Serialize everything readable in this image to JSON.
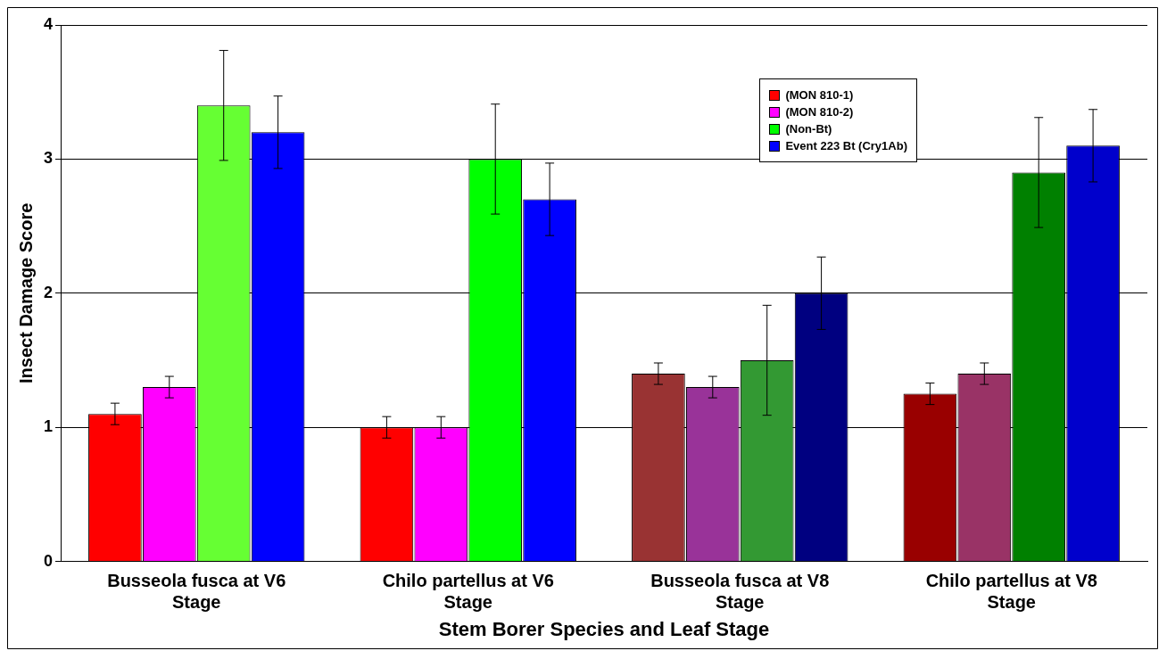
{
  "chart_data": {
    "type": "bar",
    "xlabel": "Stem Borer Species and Leaf Stage",
    "ylabel": "Insect Damage Score",
    "categories": [
      "Busseola fusca at V6 Stage",
      "Chilo partellus at V6 Stage",
      "Busseola fusca at V8 Stage",
      "Chilo partellus at V8 Stage"
    ],
    "series": [
      {
        "name": "(MON 810-1)",
        "color": "#ff0000",
        "colors": [
          "#ff0000",
          "#ff0000",
          "#993333",
          "#990000"
        ],
        "values": [
          1.1,
          1.0,
          1.4,
          1.25
        ],
        "errors": [
          0.08,
          0.08,
          0.08,
          0.08
        ]
      },
      {
        "name": "(MON 810-2)",
        "color": "#ff00ff",
        "colors": [
          "#ff00ff",
          "#ff00ff",
          "#993399",
          "#993366"
        ],
        "values": [
          1.3,
          1.0,
          1.3,
          1.4
        ],
        "errors": [
          0.08,
          0.08,
          0.08,
          0.08
        ]
      },
      {
        "name": "(Non-Bt)",
        "color": "#00ff00",
        "colors": [
          "#66ff33",
          "#00ff00",
          "#339933",
          "#008000"
        ],
        "values": [
          3.4,
          3.0,
          1.5,
          2.9
        ],
        "errors": [
          0.41,
          0.41,
          0.41,
          0.41
        ]
      },
      {
        "name": "Event 223 Bt (Cry1Ab)",
        "color": "#0000ff",
        "colors": [
          "#0000ff",
          "#0000ff",
          "#000080",
          "#0000cc"
        ],
        "values": [
          3.2,
          2.7,
          2.0,
          3.1
        ],
        "errors": [
          0.27,
          0.27,
          0.27,
          0.27
        ]
      }
    ],
    "ylim": [
      0,
      4
    ],
    "yticks": [
      0,
      1,
      2,
      3,
      4
    ],
    "grid": "y",
    "legend": "top right"
  }
}
